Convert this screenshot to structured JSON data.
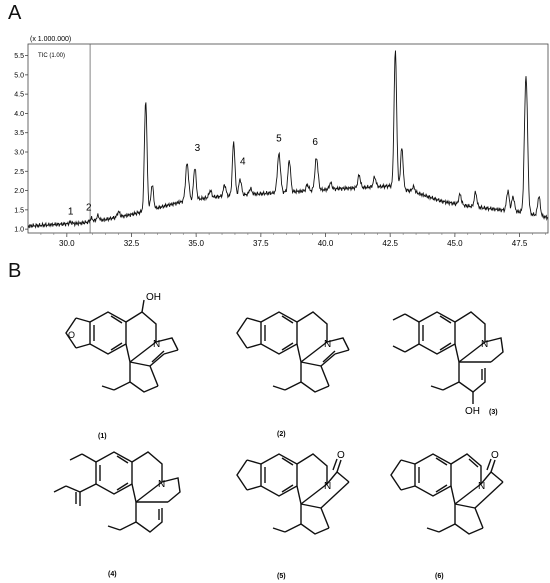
{
  "panels": {
    "a": "A",
    "b": "B"
  },
  "chart_data": {
    "type": "line",
    "multiplier": "(x 1.000.000)",
    "legend": "TIC (1.00)",
    "xlabel": "",
    "ylabel": "",
    "xlim": [
      28.5,
      48.6
    ],
    "ylim": [
      0.9,
      5.8
    ],
    "xticks": [
      30.0,
      32.5,
      35.0,
      37.5,
      40.0,
      42.5,
      45.0,
      47.5
    ],
    "xtick_labels": [
      "30.0",
      "32.5",
      "35.0",
      "37.5",
      "40.0",
      "42.5",
      "45.0",
      "47.5"
    ],
    "yticks": [
      1.0,
      1.5,
      2.0,
      2.5,
      3.0,
      3.5,
      4.0,
      4.5,
      5.0,
      5.5
    ],
    "ytick_labels": [
      "1.0",
      "1.5",
      "2.0",
      "2.5",
      "3.0",
      "3.5",
      "4.0",
      "4.5",
      "5.0",
      "5.5"
    ],
    "marker_line_x": 30.9,
    "baseline": [
      [
        28.5,
        1.08
      ],
      [
        29.5,
        1.12
      ],
      [
        30.5,
        1.15
      ],
      [
        31.5,
        1.25
      ],
      [
        32.5,
        1.38
      ],
      [
        33.5,
        1.55
      ],
      [
        34.5,
        1.72
      ],
      [
        35.5,
        1.82
      ],
      [
        36.5,
        1.88
      ],
      [
        37.5,
        1.92
      ],
      [
        38.5,
        1.96
      ],
      [
        39.5,
        2.0
      ],
      [
        40.5,
        2.05
      ],
      [
        41.5,
        2.08
      ],
      [
        42.5,
        2.12
      ],
      [
        43.5,
        1.95
      ],
      [
        44.5,
        1.72
      ],
      [
        45.5,
        1.6
      ],
      [
        46.5,
        1.52
      ],
      [
        47.5,
        1.45
      ],
      [
        48.6,
        1.3
      ]
    ],
    "peaks": [
      {
        "x": 30.15,
        "y": 1.18,
        "w": 0.05
      },
      {
        "x": 30.95,
        "y": 1.28,
        "w": 0.05
      },
      {
        "x": 31.2,
        "y": 1.35,
        "w": 0.05
      },
      {
        "x": 32.0,
        "y": 1.45,
        "w": 0.05
      },
      {
        "x": 33.05,
        "y": 4.35,
        "w": 0.05
      },
      {
        "x": 33.3,
        "y": 2.15,
        "w": 0.05
      },
      {
        "x": 34.65,
        "y": 2.7,
        "w": 0.06
      },
      {
        "x": 34.95,
        "y": 2.6,
        "w": 0.05
      },
      {
        "x": 35.55,
        "y": 2.0,
        "w": 0.05
      },
      {
        "x": 36.1,
        "y": 2.15,
        "w": 0.05
      },
      {
        "x": 36.45,
        "y": 3.25,
        "w": 0.05
      },
      {
        "x": 36.7,
        "y": 2.3,
        "w": 0.05
      },
      {
        "x": 37.1,
        "y": 2.05,
        "w": 0.05
      },
      {
        "x": 38.2,
        "y": 2.95,
        "w": 0.06
      },
      {
        "x": 38.6,
        "y": 2.8,
        "w": 0.05
      },
      {
        "x": 39.3,
        "y": 2.15,
        "w": 0.05
      },
      {
        "x": 39.65,
        "y": 2.85,
        "w": 0.06
      },
      {
        "x": 40.2,
        "y": 2.2,
        "w": 0.05
      },
      {
        "x": 41.3,
        "y": 2.4,
        "w": 0.05
      },
      {
        "x": 41.9,
        "y": 2.35,
        "w": 0.05
      },
      {
        "x": 42.7,
        "y": 5.65,
        "w": 0.05
      },
      {
        "x": 42.95,
        "y": 3.1,
        "w": 0.05
      },
      {
        "x": 43.4,
        "y": 2.1,
        "w": 0.05
      },
      {
        "x": 45.2,
        "y": 1.9,
        "w": 0.05
      },
      {
        "x": 45.8,
        "y": 1.95,
        "w": 0.05
      },
      {
        "x": 47.05,
        "y": 2.0,
        "w": 0.05
      },
      {
        "x": 47.25,
        "y": 1.85,
        "w": 0.05
      },
      {
        "x": 47.75,
        "y": 5.0,
        "w": 0.06
      },
      {
        "x": 48.25,
        "y": 1.85,
        "w": 0.05
      }
    ],
    "annotations": [
      {
        "label": "1",
        "x": 30.15,
        "y": 1.3
      },
      {
        "label": "2",
        "x": 30.85,
        "y": 1.4
      },
      {
        "label": "3",
        "x": 35.05,
        "y": 2.95
      },
      {
        "label": "4",
        "x": 36.8,
        "y": 2.6
      },
      {
        "label": "5",
        "x": 38.2,
        "y": 3.2
      },
      {
        "label": "6",
        "x": 39.6,
        "y": 3.1
      }
    ]
  },
  "molecules": [
    {
      "label": "(1)",
      "oh": "OH"
    },
    {
      "label": "(2)"
    },
    {
      "label": "(3)",
      "oh": "OH"
    },
    {
      "label": "(4)"
    },
    {
      "label": "(5)",
      "o": "O"
    },
    {
      "label": "(6)",
      "o": "O"
    }
  ],
  "atoms": {
    "n": "N"
  }
}
